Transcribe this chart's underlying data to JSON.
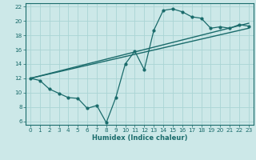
{
  "xlabel": "Humidex (Indice chaleur)",
  "ylabel": "",
  "bg_color": "#cce8e8",
  "line_color": "#1a6b6b",
  "grid_color": "#aad4d4",
  "xlim": [
    -0.5,
    23.5
  ],
  "ylim": [
    5.5,
    22.5
  ],
  "xticks": [
    0,
    1,
    2,
    3,
    4,
    5,
    6,
    7,
    8,
    9,
    10,
    11,
    12,
    13,
    14,
    15,
    16,
    17,
    18,
    19,
    20,
    21,
    22,
    23
  ],
  "yticks": [
    6,
    8,
    10,
    12,
    14,
    16,
    18,
    20,
    22
  ],
  "line1_x": [
    0,
    1,
    2,
    3,
    4,
    5,
    6,
    7,
    8,
    9,
    10,
    11,
    12,
    13,
    14,
    15,
    16,
    17,
    18,
    19,
    20,
    21,
    22,
    23
  ],
  "line1_y": [
    12.0,
    11.7,
    10.5,
    9.9,
    9.3,
    9.2,
    7.8,
    8.2,
    5.8,
    9.3,
    14.0,
    15.8,
    13.2,
    18.7,
    21.5,
    21.7,
    21.3,
    20.6,
    20.4,
    19.0,
    19.2,
    19.0,
    19.5,
    19.3
  ],
  "line2_x": [
    0,
    23
  ],
  "line2_y": [
    12.0,
    19.0
  ],
  "line3_x": [
    0,
    23
  ],
  "line3_y": [
    12.0,
    19.7
  ],
  "xlabel_fontsize": 6.0,
  "tick_fontsize": 5.2
}
